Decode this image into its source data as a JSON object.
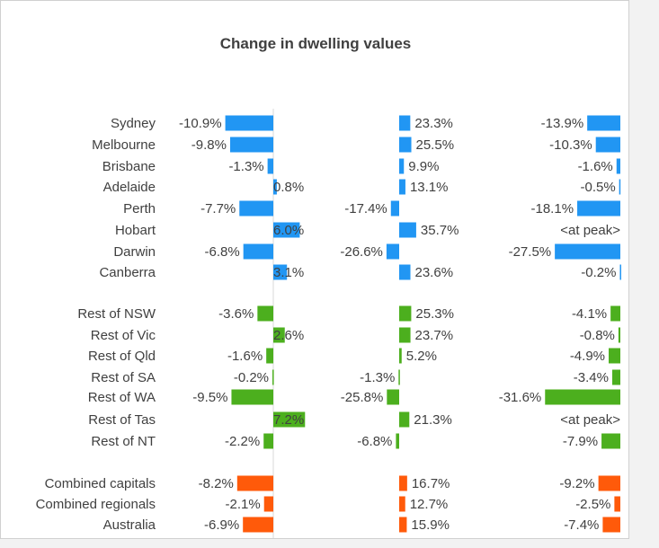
{
  "chart_data": {
    "type": "bar",
    "orientation": "horizontal",
    "title": "Change in dwelling values",
    "colors": {
      "capitals": "#2196f3",
      "regional": "#4caf1e",
      "combined": "#ff5a0a"
    },
    "categories": [
      "Sydney",
      "Melbourne",
      "Brisbane",
      "Adelaide",
      "Perth",
      "Hobart",
      "Darwin",
      "Canberra",
      "Rest of NSW",
      "Rest of Vic",
      "Rest of Qld",
      "Rest of SA",
      "Rest of WA",
      "Rest of Tas",
      "Rest of NT",
      "Combined capitals",
      "Combined regionals",
      "Australia"
    ],
    "groups": [
      "capitals",
      "capitals",
      "capitals",
      "capitals",
      "capitals",
      "capitals",
      "capitals",
      "capitals",
      "regional",
      "regional",
      "regional",
      "regional",
      "regional",
      "regional",
      "regional",
      "combined",
      "combined",
      "combined"
    ],
    "series": [
      {
        "values": [
          -10.9,
          -9.8,
          -1.3,
          0.8,
          -7.7,
          6.0,
          -6.8,
          3.1,
          -3.6,
          2.6,
          -1.6,
          -0.2,
          -9.5,
          7.2,
          -2.2,
          -8.2,
          -2.1,
          -6.9
        ],
        "labels": [
          "-10.9%",
          "-9.8%",
          "-1.3%",
          "0.8%",
          "-7.7%",
          "6.0%",
          "-6.8%",
          "3.1%",
          "-3.6%",
          "2.6%",
          "-1.6%",
          "-0.2%",
          "-9.5%",
          "7.2%",
          "-2.2%",
          "-8.2%",
          "-2.1%",
          "-6.9%"
        ]
      },
      {
        "values": [
          23.3,
          25.5,
          9.9,
          13.1,
          -17.4,
          35.7,
          -26.6,
          23.6,
          25.3,
          23.7,
          5.2,
          -1.3,
          -25.8,
          21.3,
          -6.8,
          16.7,
          12.7,
          15.9
        ],
        "labels": [
          "23.3%",
          "25.5%",
          "9.9%",
          "13.1%",
          "-17.4%",
          "35.7%",
          "-26.6%",
          "23.6%",
          "25.3%",
          "23.7%",
          "5.2%",
          "-1.3%",
          "-25.8%",
          "21.3%",
          "-6.8%",
          "16.7%",
          "12.7%",
          "15.9%"
        ]
      },
      {
        "values": [
          -13.9,
          -10.3,
          -1.6,
          -0.5,
          -18.1,
          0,
          -27.5,
          -0.2,
          -4.1,
          -0.8,
          -4.9,
          -3.4,
          -31.6,
          0,
          -7.9,
          -9.2,
          -2.5,
          -7.4
        ],
        "labels": [
          "-13.9%",
          "-10.3%",
          "-1.6%",
          "-0.5%",
          "-18.1%",
          "<at peak>",
          "-27.5%",
          "-0.2%",
          "-4.1%",
          "-0.8%",
          "-4.9%",
          "-3.4%",
          "-31.6%",
          "<at peak>",
          "-7.9%",
          "-9.2%",
          "-2.5%",
          "-7.4%"
        ]
      }
    ]
  }
}
